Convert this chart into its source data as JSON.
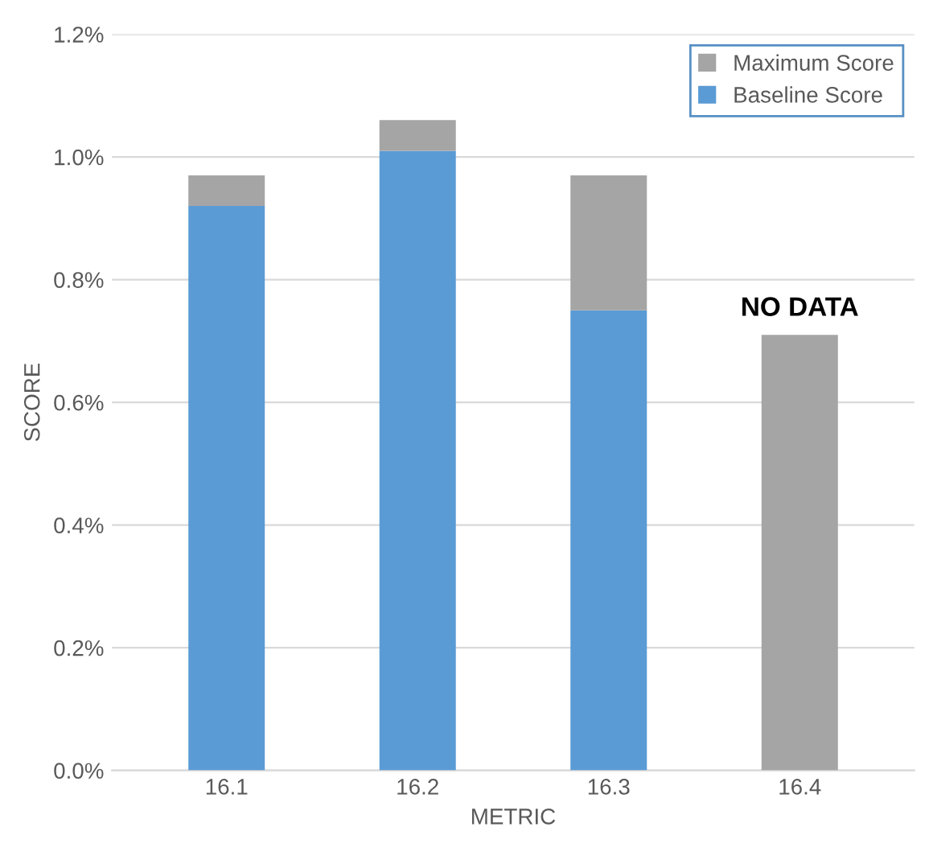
{
  "chart_data": {
    "type": "bar",
    "stacked": true,
    "xlabel": "METRIC",
    "ylabel": "SCORE",
    "categories": [
      "16.1",
      "16.2",
      "16.3",
      "16.4"
    ],
    "series": [
      {
        "name": "Baseline Score",
        "color": "#5b9bd5",
        "values": [
          0.92,
          1.01,
          0.75,
          null
        ]
      },
      {
        "name": "Maximum Score",
        "color": "#a5a5a5",
        "values": [
          0.05,
          0.05,
          0.22,
          0.71
        ]
      }
    ],
    "ylim": [
      0,
      1.2
    ],
    "yticks": [
      {
        "value": 0,
        "label": "0.0%"
      },
      {
        "value": 0.2,
        "label": "0.2%"
      },
      {
        "value": 0.4,
        "label": "0.4%"
      },
      {
        "value": 0.6,
        "label": "0.6%"
      },
      {
        "value": 0.8,
        "label": "0.8%"
      },
      {
        "value": 1.0,
        "label": "1.0%"
      },
      {
        "value": 1.2,
        "label": "1.2%"
      }
    ],
    "annotations": [
      {
        "text": "NO DATA",
        "x": "16.4",
        "y": 0.71
      }
    ],
    "grid": "y",
    "legend": "top right"
  }
}
